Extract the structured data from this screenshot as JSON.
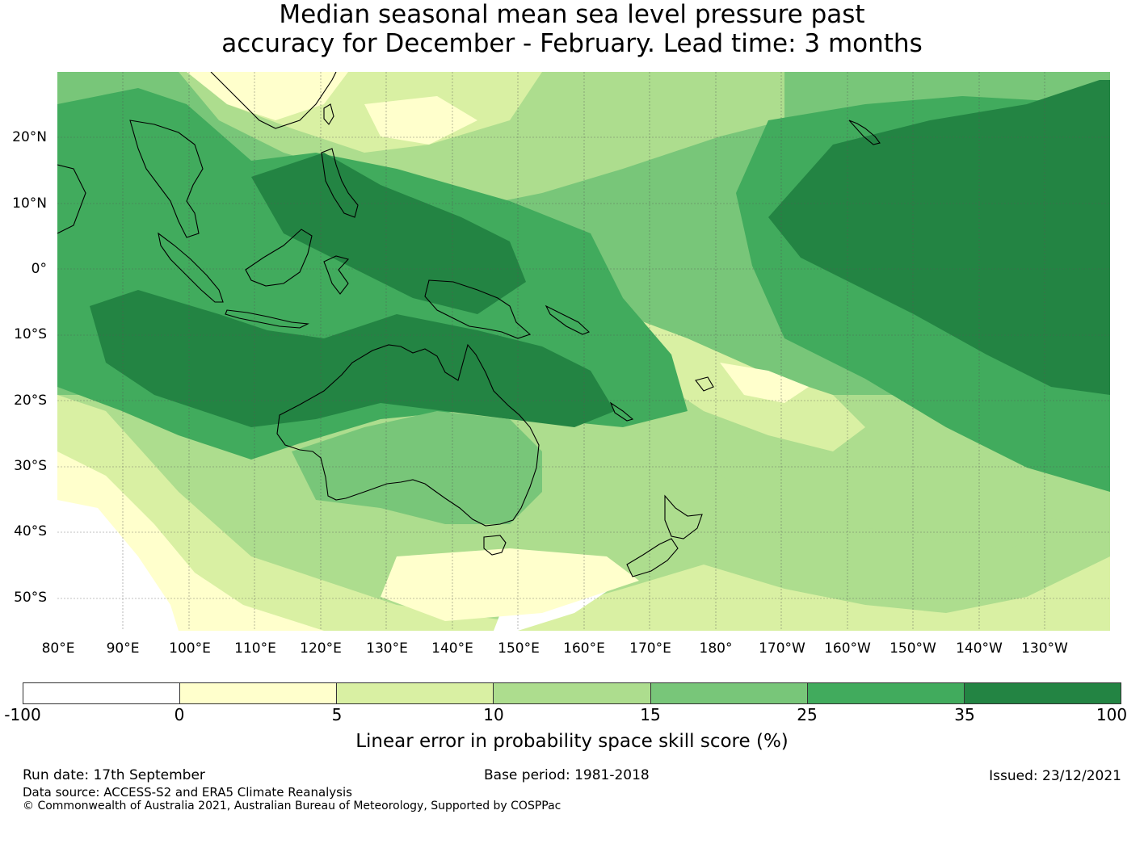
{
  "title": {
    "line1": "Median seasonal mean sea level pressure past",
    "line2": "accuracy for December - February. Lead time: 3 months"
  },
  "map": {
    "lat_labels": [
      "20°N",
      "10°N",
      "0°",
      "10°S",
      "20°S",
      "30°S",
      "40°S",
      "50°S"
    ],
    "lon_labels": [
      "80°E",
      "90°E",
      "100°E",
      "110°E",
      "120°E",
      "130°E",
      "140°E",
      "150°E",
      "160°E",
      "170°E",
      "180°",
      "170°W",
      "160°W",
      "150°W",
      "140°W",
      "130°W"
    ],
    "extent": {
      "lon_min": 80,
      "lon_max": 240,
      "lat_min": -55,
      "lat_max": 30
    }
  },
  "colorbar": {
    "ticks": [
      "-100",
      "0",
      "5",
      "10",
      "15",
      "25",
      "35",
      "100"
    ],
    "colors": [
      "#ffffff",
      "#ffffcc",
      "#d9f0a3",
      "#addd8e",
      "#78c679",
      "#41ab5d",
      "#238443"
    ],
    "label": "Linear error in probability space skill score (%)"
  },
  "footer": {
    "run_date": "Run date: 17th September",
    "base_period": "Base period: 1981-2018",
    "issued": "Issued: 23/12/2021",
    "data_source": "Data source: ACCESS-S2 and ERA5 Climate Reanalysis",
    "copyright": "© Commonwealth of Australia 2021, Australian Bureau of Meteorology, Supported by COSPPac"
  }
}
